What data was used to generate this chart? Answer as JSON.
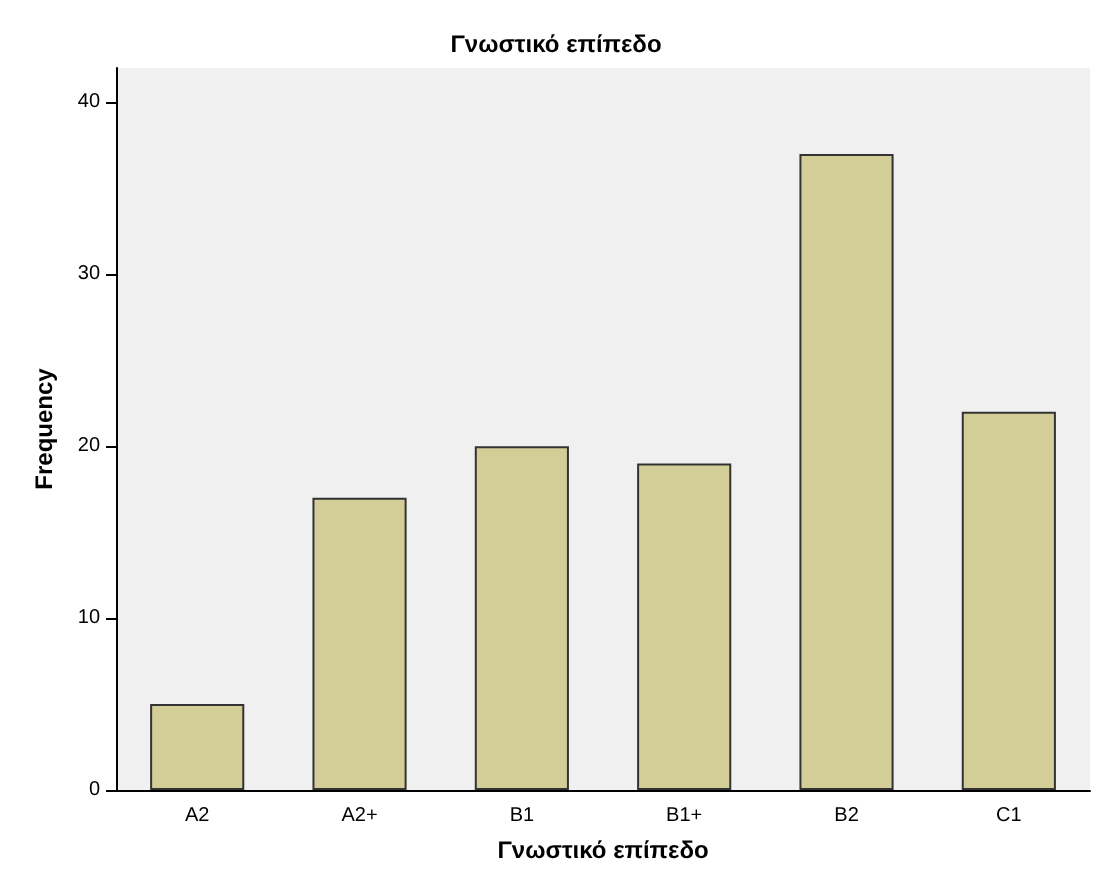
{
  "chart_data": {
    "type": "bar",
    "title": "Γνωστικό επίπεδο",
    "xlabel": "Γνωστικό επίπεδο",
    "ylabel": "Frequency",
    "categories": [
      "A2",
      "A2+",
      "B1",
      "B1+",
      "B2",
      "C1"
    ],
    "values": [
      5,
      17,
      20,
      19,
      37,
      22
    ],
    "color": "#d3ce98",
    "ylim": [
      0,
      42
    ],
    "yticks": [
      0,
      10,
      20,
      30,
      40
    ],
    "grid": false
  }
}
